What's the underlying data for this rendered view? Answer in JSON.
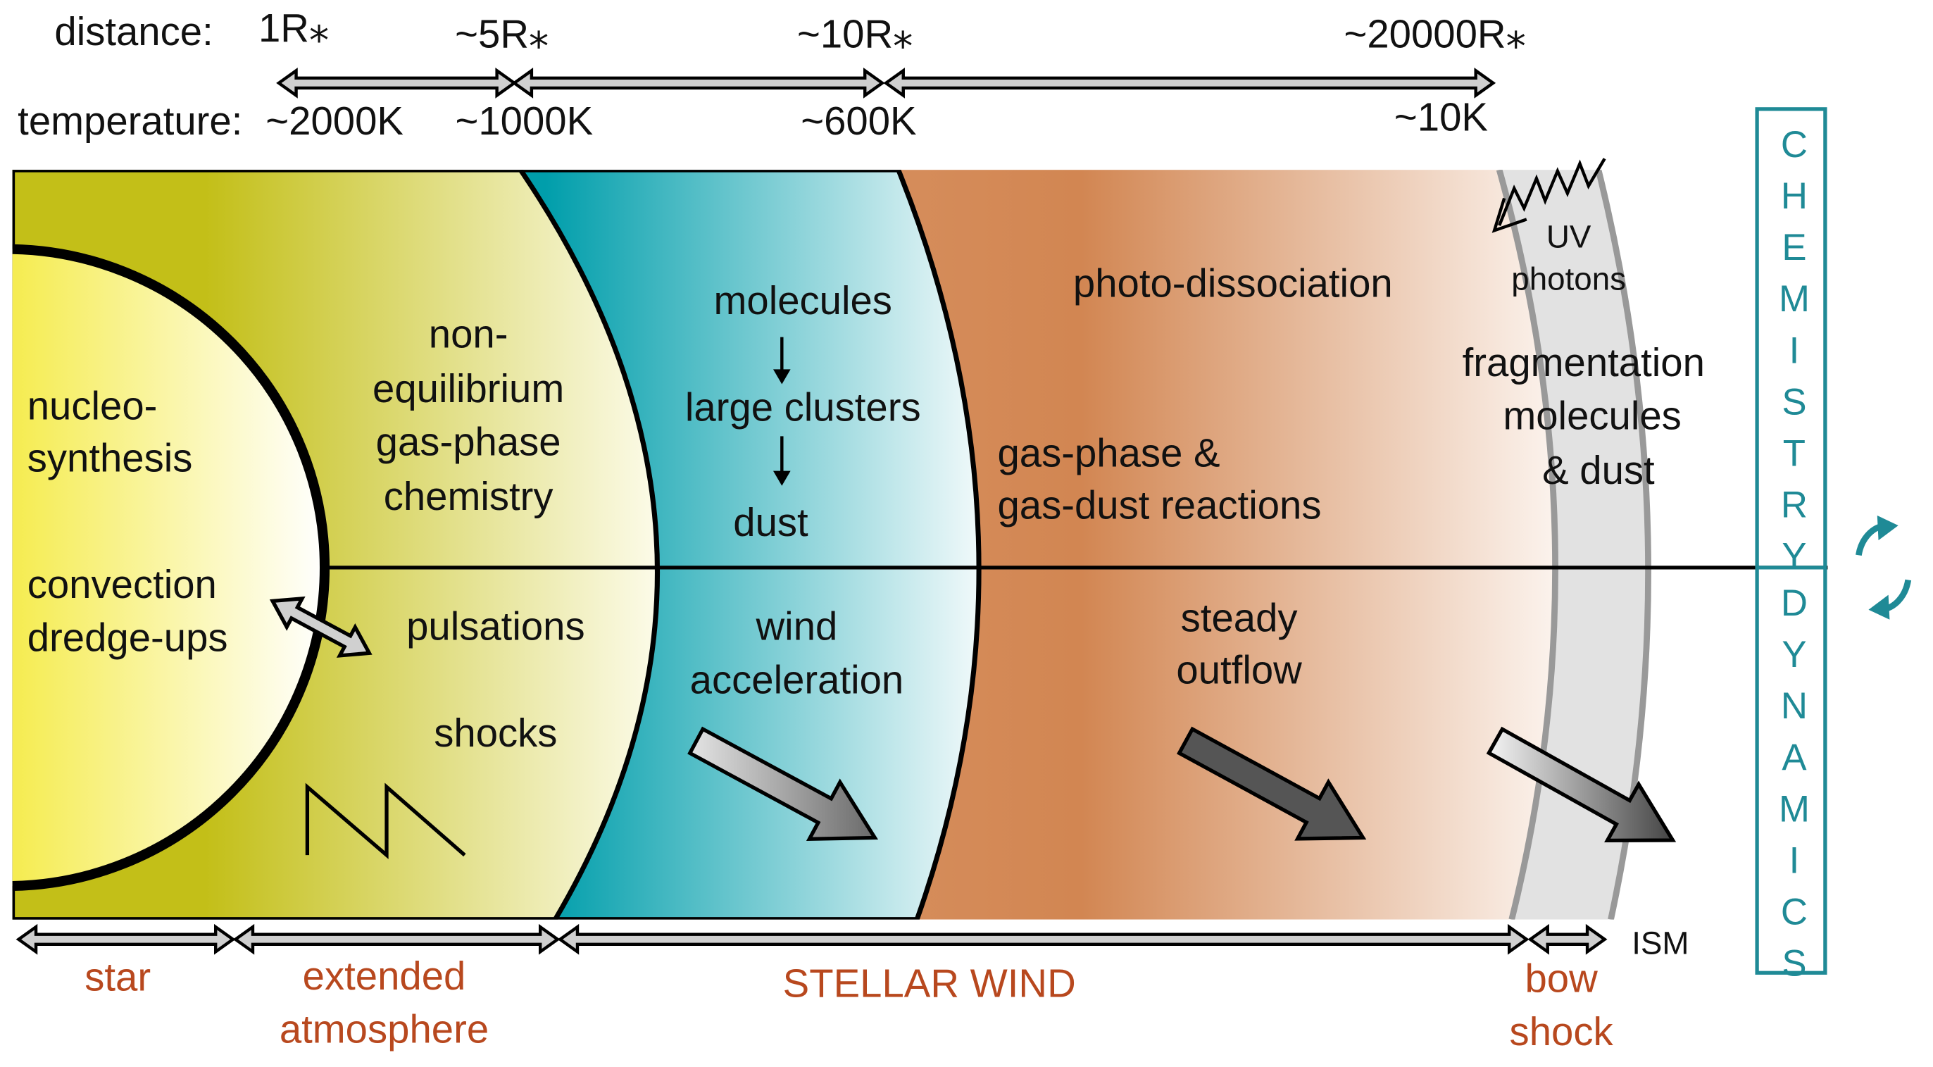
{
  "scale": {
    "distance_label": "distance:",
    "temperature_label": "temperature:",
    "distances": [
      "1R⁎",
      "~5R⁎",
      "~10R⁎",
      "~20000R⁎"
    ],
    "temperatures": [
      "~2000K",
      "~1000K",
      "~600K",
      "~10K"
    ]
  },
  "zones": [
    {
      "chemistry": [
        "nucleo-",
        "synthesis"
      ],
      "dynamics": [
        "convection",
        "dredge-ups"
      ]
    },
    {
      "chemistry": [
        "non-",
        "equilibrium",
        "gas-phase",
        "chemistry"
      ],
      "dynamics": [
        "pulsations",
        "shocks"
      ]
    },
    {
      "chemistry": [
        "molecules",
        "large clusters",
        "dust"
      ],
      "dynamics": [
        "wind",
        "acceleration"
      ]
    },
    {
      "chemistry": [
        "photo-dissociation",
        "gas-phase &",
        "gas-dust reactions"
      ],
      "dynamics": [
        "steady",
        "outflow"
      ]
    },
    {
      "photons": [
        "UV",
        "photons"
      ],
      "chemistry": [
        "fragmentation",
        "molecules",
        "& dust"
      ]
    }
  ],
  "regions": {
    "star": "star",
    "atmosphere": [
      "extended",
      "atmosphere"
    ],
    "wind": "STELLAR WIND",
    "bow_shock": [
      "bow",
      "shock"
    ],
    "ism": "ISM"
  },
  "sidebar": {
    "top": "CHEMISTRY",
    "bottom": "DYNAMICS"
  }
}
